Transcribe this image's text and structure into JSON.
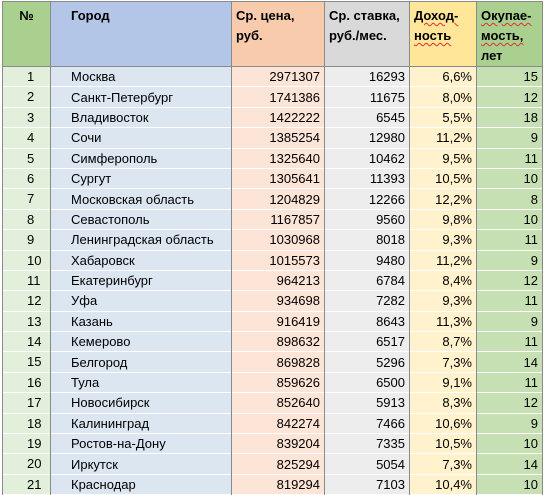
{
  "header": {
    "num": "№",
    "city": "Город",
    "price_line1": "Ср. цена,",
    "price_line2": "руб.",
    "rate_line1": "Ср. ставка,",
    "rate_line2": "руб./мес.",
    "yield_line1": "Доход-",
    "yield_line2": "ность",
    "payback_line1": "Окупае-",
    "payback_line2": "мость,",
    "payback_line3": "лет"
  },
  "rows": [
    {
      "num": "1",
      "city": "Москва",
      "price": "2971307",
      "rate": "16293",
      "yield": "6,6%",
      "payback": "15"
    },
    {
      "num": "2",
      "city": "Санкт-Петербург",
      "price": "1741386",
      "rate": "11675",
      "yield": "8,0%",
      "payback": "12"
    },
    {
      "num": "3",
      "city": "Владивосток",
      "price": "1422222",
      "rate": "6545",
      "yield": "5,5%",
      "payback": "18"
    },
    {
      "num": "4",
      "city": "Сочи",
      "price": "1385254",
      "rate": "12980",
      "yield": "11,2%",
      "payback": "9"
    },
    {
      "num": "5",
      "city": "Симферополь",
      "price": "1325640",
      "rate": "10462",
      "yield": "9,5%",
      "payback": "11"
    },
    {
      "num": "6",
      "city": "Сургут",
      "price": "1305641",
      "rate": "11393",
      "yield": "10,5%",
      "payback": "10"
    },
    {
      "num": "7",
      "city": "Московская область",
      "price": "1204829",
      "rate": "12266",
      "yield": "12,2%",
      "payback": "8"
    },
    {
      "num": "8",
      "city": "Севастополь",
      "price": "1167857",
      "rate": "9560",
      "yield": "9,8%",
      "payback": "10"
    },
    {
      "num": "9",
      "city": "Ленинградская область",
      "price": "1030968",
      "rate": "8018",
      "yield": "9,3%",
      "payback": "11"
    },
    {
      "num": "10",
      "city": "Хабаровск",
      "price": "1015573",
      "rate": "9480",
      "yield": "11,2%",
      "payback": "9"
    },
    {
      "num": "11",
      "city": "Екатеринбург",
      "price": "964213",
      "rate": "6784",
      "yield": "8,4%",
      "payback": "12"
    },
    {
      "num": "12",
      "city": "Уфа",
      "price": "934698",
      "rate": "7282",
      "yield": "9,3%",
      "payback": "11"
    },
    {
      "num": "13",
      "city": "Казань",
      "price": "916419",
      "rate": "8643",
      "yield": "11,3%",
      "payback": "9"
    },
    {
      "num": "14",
      "city": "Кемерово",
      "price": "898632",
      "rate": "6517",
      "yield": "8,7%",
      "payback": "11"
    },
    {
      "num": "15",
      "city": "Белгород",
      "price": "869828",
      "rate": "5296",
      "yield": "7,3%",
      "payback": "14"
    },
    {
      "num": "16",
      "city": "Тула",
      "price": "859626",
      "rate": "6500",
      "yield": "9,1%",
      "payback": "11"
    },
    {
      "num": "17",
      "city": "Новосибирск",
      "price": "852640",
      "rate": "5913",
      "yield": "8,3%",
      "payback": "12"
    },
    {
      "num": "18",
      "city": "Калининград",
      "price": "842274",
      "rate": "7466",
      "yield": "10,6%",
      "payback": "9"
    },
    {
      "num": "19",
      "city": "Ростов-на-Дону",
      "price": "839204",
      "rate": "7335",
      "yield": "10,5%",
      "payback": "10"
    },
    {
      "num": "20",
      "city": "Иркутск",
      "price": "825294",
      "rate": "5054",
      "yield": "7,3%",
      "payback": "14"
    },
    {
      "num": "21",
      "city": "Краснодар",
      "price": "819294",
      "rate": "7103",
      "yield": "10,4%",
      "payback": "10"
    }
  ]
}
